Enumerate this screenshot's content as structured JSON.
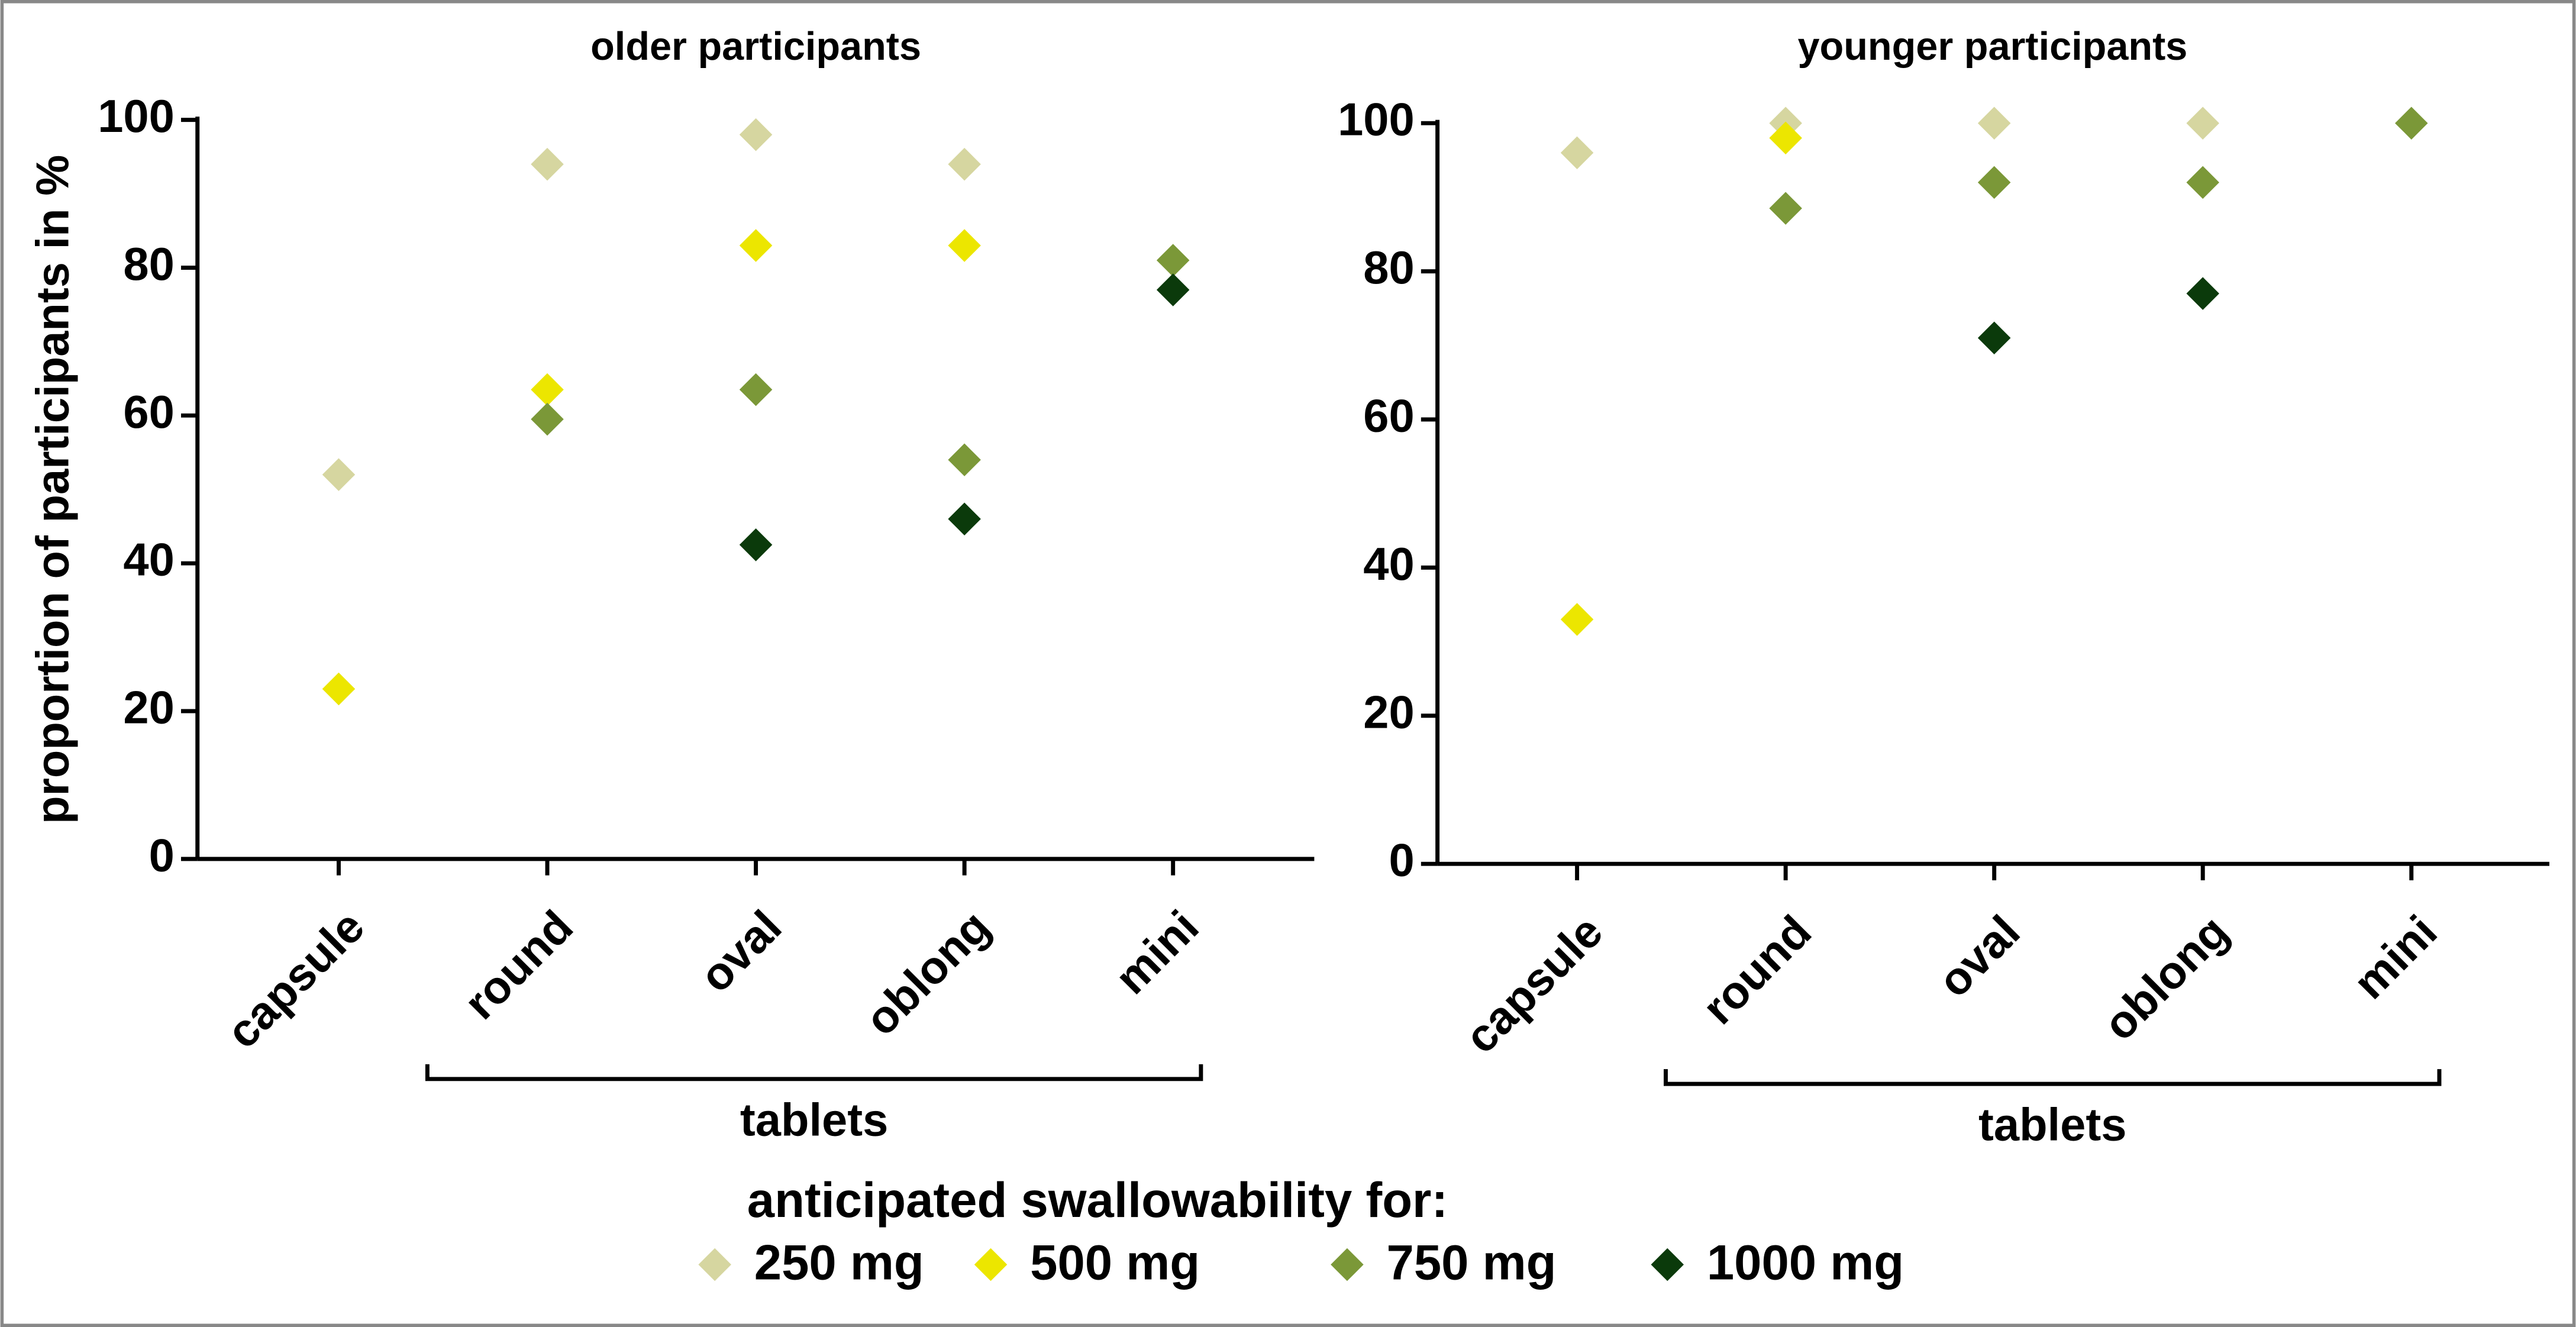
{
  "chart_data": [
    {
      "type": "scatter",
      "title": "older participants",
      "y_label": "proportion of participants in %",
      "categories": [
        "capsule",
        "round",
        "oval",
        "oblong",
        "mini"
      ],
      "group_label": "tablets",
      "ylim": [
        0,
        100
      ],
      "yticks": [
        0,
        20,
        40,
        60,
        80,
        100
      ],
      "series": [
        {
          "name": "250 mg",
          "color": "#d6d6a0",
          "values": [
            52,
            94,
            98,
            94,
            null
          ]
        },
        {
          "name": "500 mg",
          "color": "#ece600",
          "values": [
            23,
            63.5,
            83,
            83,
            null
          ]
        },
        {
          "name": "750 mg",
          "color": "#7b9838",
          "values": [
            null,
            59.5,
            63.5,
            54,
            81
          ]
        },
        {
          "name": "1000 mg",
          "color": "#0b3a0b",
          "values": [
            null,
            null,
            42.5,
            46,
            77
          ]
        }
      ]
    },
    {
      "type": "scatter",
      "title": "younger participants",
      "categories": [
        "capsule",
        "round",
        "oval",
        "oblong",
        "mini"
      ],
      "group_label": "tablets",
      "ylim": [
        0,
        100
      ],
      "yticks": [
        0,
        20,
        40,
        60,
        80,
        100
      ],
      "series": [
        {
          "name": "250 mg",
          "color": "#d6d6a0",
          "values": [
            96,
            100,
            100,
            100,
            null
          ]
        },
        {
          "name": "500 mg",
          "color": "#ece600",
          "values": [
            33,
            98,
            null,
            null,
            null
          ]
        },
        {
          "name": "750 mg",
          "color": "#7b9838",
          "values": [
            null,
            88.5,
            92,
            92,
            100
          ]
        },
        {
          "name": "1000 mg",
          "color": "#0b3a0b",
          "values": [
            null,
            null,
            71,
            77,
            null
          ]
        }
      ]
    }
  ],
  "legend": {
    "title": "anticipated swallowability for:"
  }
}
